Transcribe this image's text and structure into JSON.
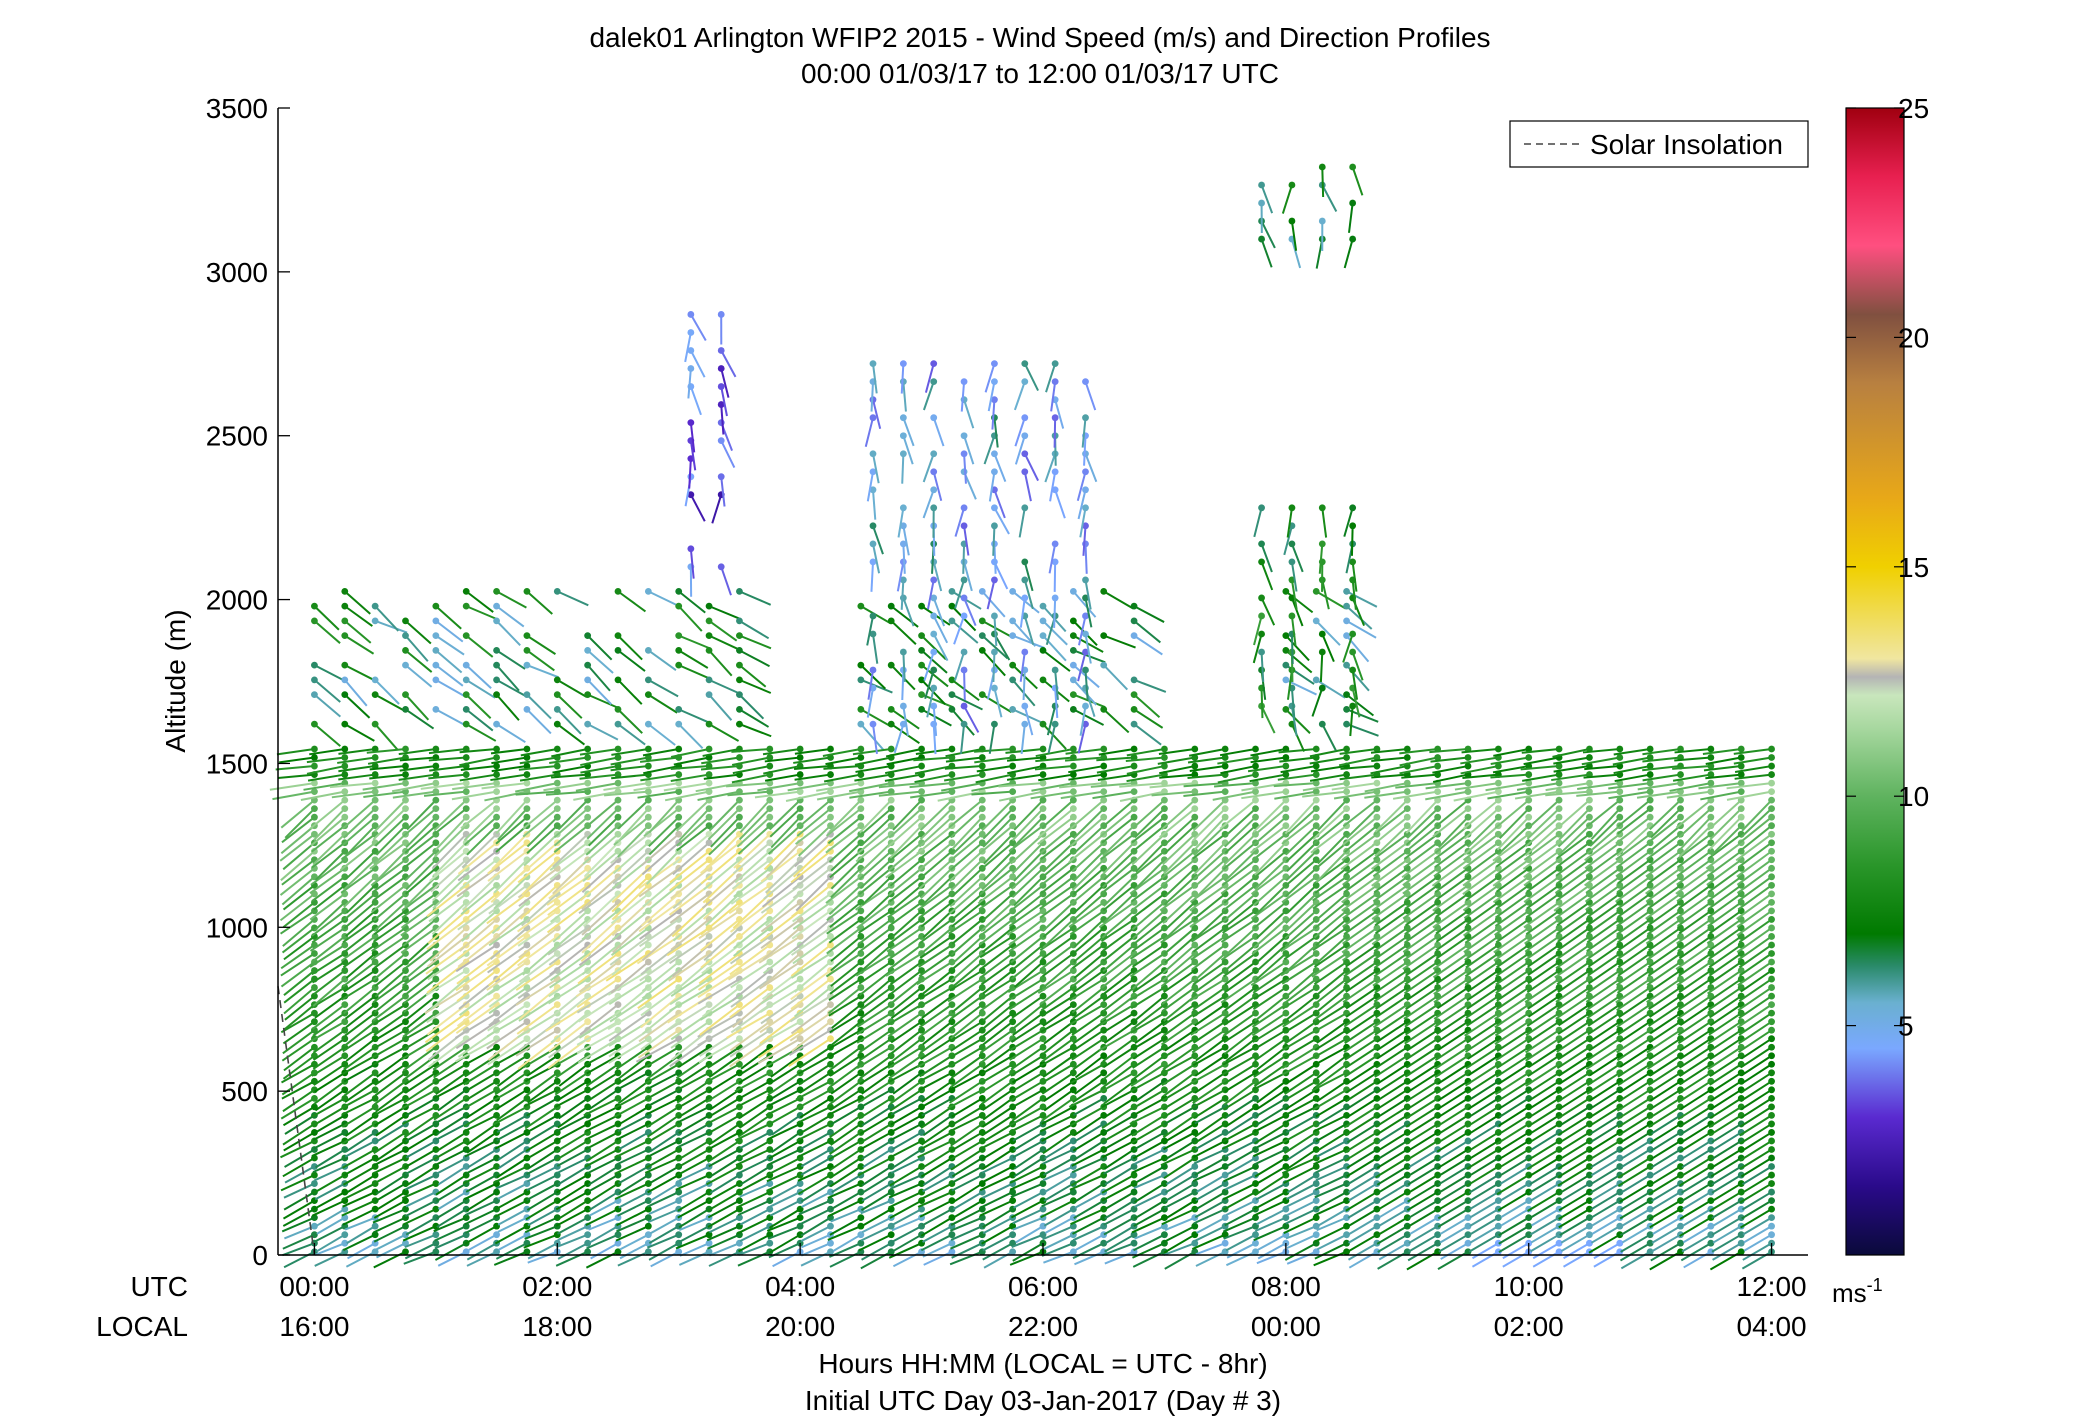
{
  "chart_data": {
    "type": "scatter",
    "title": "dalek01 Arlington WFIP2 2015 - Wind Speed (m/s) and Direction Profiles",
    "subtitle": "00:00 01/03/17 to 12:00 01/03/17  UTC",
    "ylabel": "Altitude (m)",
    "xlabel": "Hours HH:MM  (LOCAL = UTC - 8hr)",
    "xlabel2": "Initial UTC Day 03-Jan-2017 (Day # 3)",
    "ylim": [
      0,
      3500
    ],
    "xlim_hours": [
      -0.3,
      12.3
    ],
    "yticks": [
      0,
      500,
      1000,
      1500,
      2000,
      2500,
      3000,
      3500
    ],
    "ytick_labels": [
      "0",
      "500",
      "1000",
      "1500",
      "2000",
      "2500",
      "3000",
      "3500"
    ],
    "xticks_hours": [
      0,
      2,
      4,
      6,
      8,
      10,
      12
    ],
    "utc_label": "UTC",
    "local_label": "LOCAL",
    "utc_tick_labels": [
      "00:00",
      "02:00",
      "04:00",
      "06:00",
      "08:00",
      "10:00",
      "12:00"
    ],
    "local_tick_labels": [
      "16:00",
      "18:00",
      "20:00",
      "22:00",
      "00:00",
      "02:00",
      "04:00"
    ],
    "legend": {
      "entries": [
        "Solar Insolation"
      ],
      "position": "top-right",
      "line_color": "#444444"
    },
    "colorbar": {
      "range": [
        0,
        25
      ],
      "ticks": [
        5,
        10,
        15,
        20,
        25
      ],
      "tick_labels": [
        "5",
        "10",
        "15",
        "20",
        "25"
      ],
      "unit_label": "ms",
      "unit_superscript": "-1",
      "stops": [
        {
          "v": 0,
          "c": "#0a0a3a"
        },
        {
          "v": 1.5,
          "c": "#2a0a8a"
        },
        {
          "v": 3,
          "c": "#5a2ad0"
        },
        {
          "v": 4.5,
          "c": "#7aa8ff"
        },
        {
          "v": 5.5,
          "c": "#6ab0d0"
        },
        {
          "v": 6.3,
          "c": "#2a8a6a"
        },
        {
          "v": 7,
          "c": "#007a00"
        },
        {
          "v": 8.5,
          "c": "#2a962a"
        },
        {
          "v": 10,
          "c": "#5fb35f"
        },
        {
          "v": 11.5,
          "c": "#a8d8a0"
        },
        {
          "v": 12.2,
          "c": "#c8e6bc"
        },
        {
          "v": 12.6,
          "c": "#b4b4b4"
        },
        {
          "v": 13,
          "c": "#f0e6a0"
        },
        {
          "v": 15,
          "c": "#f0d000"
        },
        {
          "v": 16.5,
          "c": "#e8a818"
        },
        {
          "v": 19,
          "c": "#b88040"
        },
        {
          "v": 20.5,
          "c": "#805040"
        },
        {
          "v": 22,
          "c": "#ff4f80"
        },
        {
          "v": 23.5,
          "c": "#e82050"
        },
        {
          "v": 25,
          "c": "#a00010"
        }
      ]
    },
    "solar_insolation": {
      "hours": [
        -0.3,
        0.0
      ],
      "altitude_m": [
        820,
        0
      ],
      "style": "dashed"
    },
    "profiles": {
      "times_hours_start": 0.0,
      "times_hours_end": 12.0,
      "times_step_hours": 0.25,
      "range_gate_m": 26,
      "range_gate_start_m": 0,
      "wind_direction_deg": 225,
      "low_level_speed_ms": [
        6,
        11
      ],
      "elevated_max_ms": 13.5,
      "inversion_top_m": 1560,
      "sparse_layer_top_m": 2050,
      "sparse_layer_bottom_m": 1620,
      "upper_clusters": [
        {
          "hours": [
            4.6,
            6.5
          ],
          "alt_m": [
            1620,
            2740
          ],
          "mean_speed_ms": 5.0
        },
        {
          "hours": [
            3.1,
            3.5
          ],
          "alt_m": [
            2100,
            2900
          ],
          "mean_speed_ms": 3.5
        },
        {
          "hours": [
            7.8,
            8.6
          ],
          "alt_m": [
            3100,
            3330
          ],
          "mean_speed_ms": 7.0
        },
        {
          "hours": [
            7.8,
            8.6
          ],
          "alt_m": [
            1620,
            2300
          ],
          "mean_speed_ms": 7.5
        }
      ]
    }
  }
}
